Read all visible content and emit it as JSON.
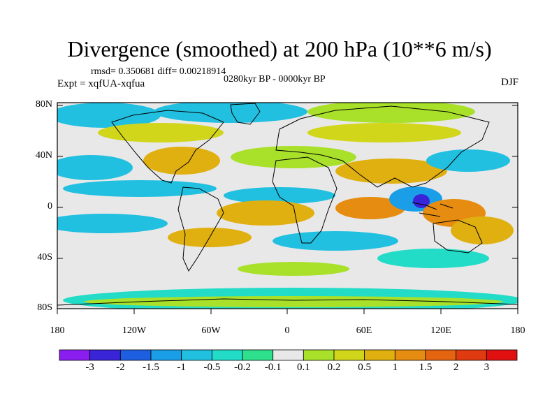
{
  "title": "Divergence (smoothed) at 200 hPa (10**6 m/s)",
  "stats": "rmsd= 0.350681 diff= 0.00218914",
  "period": "0280kyr BP - 0000kyr BP",
  "experiment": "Expt = xqfUA-xqfua",
  "season": "DJF",
  "lat_labels": [
    "80N",
    "40N",
    "0",
    "40S",
    "80S"
  ],
  "lon_labels": [
    "180",
    "120W",
    "60W",
    "0",
    "60E",
    "120E",
    "180"
  ],
  "colorbar": {
    "colors": [
      "#8a1df0",
      "#3a24d8",
      "#1e5ee0",
      "#1a9ee8",
      "#22c0e0",
      "#22dcc8",
      "#2ee08c",
      "#e8e8e8",
      "#a8e02a",
      "#d2d61a",
      "#e0b010",
      "#e68c10",
      "#e46410",
      "#e03a10",
      "#e01010"
    ],
    "labels": [
      "-3",
      "-2",
      "-1.5",
      "-1",
      "-0.5",
      "-0.2",
      "-0.1",
      "0.1",
      "0.2",
      "0.5",
      "1",
      "1.5",
      "2",
      "3"
    ]
  }
}
